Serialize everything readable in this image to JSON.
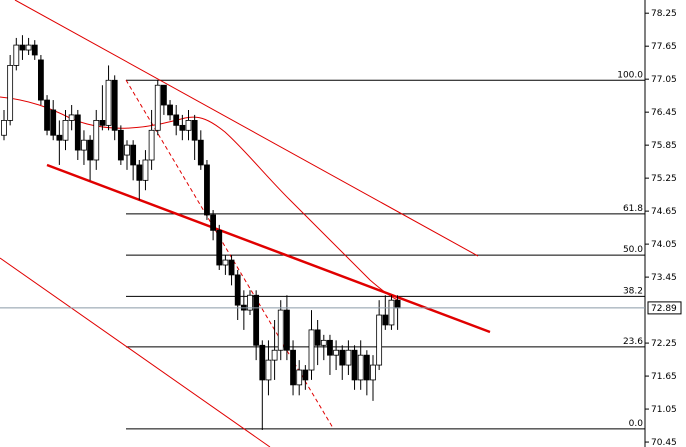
{
  "chart_data": {
    "type": "candlestick",
    "ylim": [
      70.36,
      78.49
    ],
    "yticks": [
      78.25,
      77.65,
      77.05,
      76.45,
      75.85,
      75.25,
      74.65,
      74.05,
      73.45,
      72.25,
      71.65,
      71.05,
      70.45
    ],
    "up_color": "#ffffff",
    "down_color": "#000000",
    "open": [
      76.03,
      76.3,
      77.3,
      77.67,
      77.58,
      77.67,
      77.4,
      76.67,
      76.49,
      76.03,
      75.94,
      76.3,
      76.4,
      75.76,
      75.94,
      75.58,
      76.3,
      76.21,
      77.03,
      76.12,
      75.67,
      75.85,
      75.49,
      75.21,
      75.58,
      76.12,
      76.94,
      76.58,
      76.4,
      76.21,
      76.12,
      76.3,
      75.94,
      75.49,
      74.58,
      74.3,
      73.67,
      73.76,
      73.49,
      72.94,
      72.85,
      73.12,
      72.21,
      71.58,
      71.94,
      72.12,
      72.85,
      72.12,
      71.49,
      71.76,
      71.76,
      72.49,
      72.21,
      72.3,
      72.03,
      72.12,
      71.85,
      72.12,
      71.58,
      72.03,
      71.58,
      71.85,
      72.76,
      72.58,
      73.03
    ],
    "high": [
      76.49,
      77.49,
      77.8,
      77.85,
      77.8,
      77.76,
      77.49,
      76.76,
      76.67,
      76.3,
      76.49,
      76.58,
      76.49,
      76.12,
      76.03,
      76.49,
      76.94,
      77.3,
      77.12,
      76.21,
      75.94,
      75.94,
      75.58,
      75.76,
      76.49,
      77.03,
      76.94,
      76.67,
      76.58,
      76.4,
      76.49,
      76.4,
      76.12,
      75.58,
      74.67,
      74.4,
      73.85,
      73.85,
      73.58,
      73.21,
      73.21,
      73.21,
      72.3,
      72.3,
      72.67,
      73.03,
      73.12,
      72.3,
      71.94,
      71.85,
      72.85,
      72.67,
      72.4,
      72.4,
      72.3,
      72.21,
      72.3,
      72.21,
      72.3,
      72.12,
      72.03,
      73.03,
      73.12,
      73.12,
      73.12
    ],
    "low": [
      75.94,
      76.21,
      77.21,
      77.4,
      77.49,
      77.4,
      76.58,
      76.03,
      75.94,
      75.49,
      75.76,
      76.12,
      75.58,
      75.49,
      75.21,
      75.4,
      76.12,
      76.12,
      75.94,
      75.49,
      75.4,
      75.21,
      74.85,
      75.03,
      75.4,
      76.03,
      76.4,
      76.3,
      76.03,
      75.94,
      75.94,
      75.58,
      75.4,
      74.49,
      74.12,
      73.58,
      73.49,
      73.3,
      72.67,
      72.49,
      72.76,
      71.94,
      70.67,
      71.3,
      71.58,
      71.94,
      71.94,
      71.3,
      71.3,
      71.4,
      71.58,
      71.85,
      71.94,
      71.67,
      71.76,
      71.58,
      71.67,
      71.4,
      71.4,
      71.3,
      71.2,
      71.76,
      72.49,
      72.49,
      72.49
    ],
    "close": [
      76.3,
      77.3,
      77.67,
      77.58,
      77.67,
      77.49,
      76.67,
      76.12,
      76.03,
      75.94,
      76.3,
      76.4,
      75.76,
      75.94,
      75.58,
      76.3,
      76.21,
      77.03,
      76.12,
      75.58,
      75.85,
      75.49,
      75.21,
      75.58,
      76.12,
      76.94,
      76.58,
      76.4,
      76.21,
      76.12,
      76.3,
      75.94,
      75.49,
      74.58,
      74.3,
      73.67,
      73.76,
      73.49,
      72.94,
      72.85,
      73.12,
      72.21,
      71.58,
      71.94,
      72.12,
      72.85,
      72.12,
      71.49,
      71.76,
      71.58,
      72.49,
      72.21,
      72.3,
      72.03,
      72.12,
      71.85,
      72.12,
      71.58,
      72.03,
      71.58,
      71.85,
      72.76,
      72.58,
      73.03,
      72.89
    ],
    "current_price": 72.89,
    "fibonacci": [
      {
        "label": "100.0",
        "price": 77.03
      },
      {
        "label": "61.8",
        "price": 74.6
      },
      {
        "label": "50.0",
        "price": 73.85
      },
      {
        "label": "38.2",
        "price": 73.1
      },
      {
        "label": "23.6",
        "price": 72.18
      },
      {
        "label": "0.0",
        "price": 70.69
      }
    ]
  }
}
